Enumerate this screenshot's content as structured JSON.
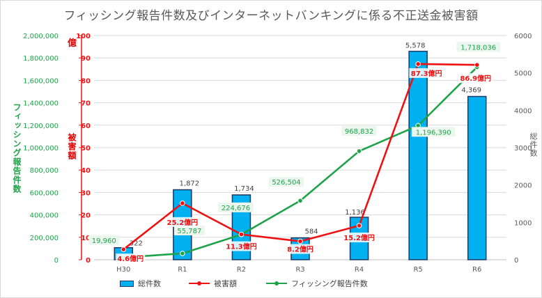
{
  "title": "フィッシング報告件数及びインターネットバンキングに係る不正送金被害額",
  "chart_data": {
    "type": "bar",
    "categories": [
      "H30",
      "R1",
      "R2",
      "R3",
      "R4",
      "R5",
      "R6"
    ],
    "series": [
      {
        "name": "総件数",
        "type": "bar",
        "axis": "right",
        "values": [
          322,
          1872,
          1734,
          584,
          1136,
          5578,
          4369
        ],
        "labels": [
          "322",
          "1,872",
          "1,734",
          "584",
          "1,136",
          "5,578",
          "4,369"
        ]
      },
      {
        "name": "被害額",
        "type": "line",
        "axis": "damage",
        "values": [
          4.6,
          25.2,
          11.3,
          8.2,
          15.2,
          87.3,
          86.9
        ],
        "labels": [
          "4.6億円",
          "25.2億円",
          "11.3億円",
          "8.2億円",
          "15.2億円",
          "87.3億円",
          "86.9億円"
        ]
      },
      {
        "name": "フィッシング報告件数",
        "type": "line",
        "axis": "phishing",
        "values": [
          19960,
          55787,
          224676,
          526504,
          968832,
          1196390,
          1718036
        ],
        "labels": [
          "19,960",
          "55,787",
          "224,676",
          "526,504",
          "968,832",
          "1,196,390",
          "1,718,036"
        ]
      }
    ],
    "axes": {
      "phishing": {
        "label": "フィッシング報告件数",
        "ylim": [
          0,
          2000000
        ],
        "ticks": [
          "0",
          "200,000",
          "400,000",
          "600,000",
          "800,000",
          "1,000,000",
          "1,200,000",
          "1,400,000",
          "1,600,000",
          "1,800,000",
          "2,000,000"
        ]
      },
      "damage": {
        "label": "被害額",
        "unit": "億",
        "ylim": [
          0,
          100
        ],
        "ticks": [
          "0",
          "10",
          "20",
          "30",
          "40",
          "50",
          "60",
          "70",
          "80",
          "90",
          "100"
        ]
      },
      "right": {
        "label": "総件数",
        "ylim": [
          0,
          6000
        ],
        "ticks": [
          "0",
          "1000",
          "2000",
          "3000",
          "4000",
          "5000",
          "6000"
        ]
      }
    },
    "grid": true,
    "legend_position": "bottom",
    "colors": {
      "bar": "#00b0f0",
      "bar_edge": "#1f3864",
      "damage": "#ee1111",
      "phishing": "#1fa34a",
      "grid": "#d9d9d9",
      "text": "#595959"
    }
  }
}
